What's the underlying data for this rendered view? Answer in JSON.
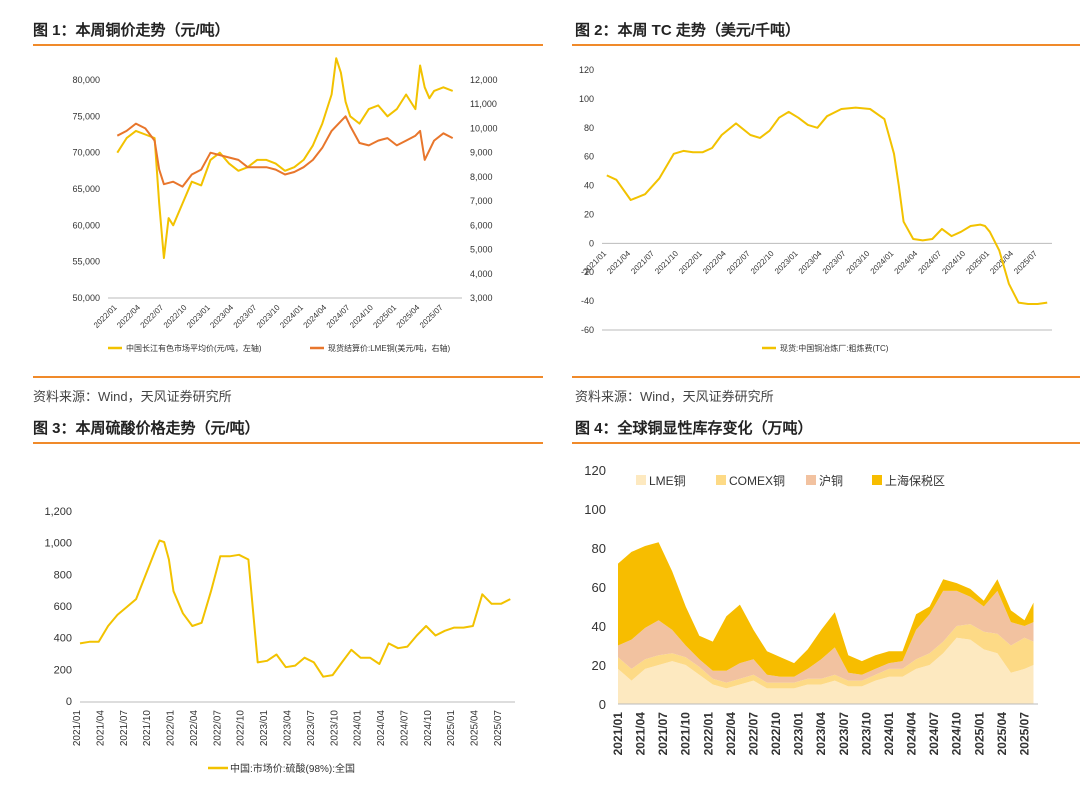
{
  "chart_data": [
    {
      "type": "line",
      "title": "图 1：本周铜价走势（元/吨）",
      "x_ticks": [
        "2022/01",
        "2022/04",
        "2022/07",
        "2022/10",
        "2023/01",
        "2023/04",
        "2023/07",
        "2023/10",
        "2024/01",
        "2024/04",
        "2024/07",
        "2024/10",
        "2025/01",
        "2025/04",
        "2025/07"
      ],
      "y_left": {
        "min": 50000,
        "max": 80000,
        "ticks": [
          "50,000",
          "55,000",
          "60,000",
          "65,000",
          "70,000",
          "75,000",
          "80,000"
        ]
      },
      "y_right": {
        "min": 3000,
        "max": 12000,
        "ticks": [
          "3,000",
          "4,000",
          "5,000",
          "6,000",
          "7,000",
          "8,000",
          "9,000",
          "10,000",
          "11,000",
          "12,000"
        ]
      },
      "series": [
        {
          "name": "中国长江有色市场平均价(元/吨，左轴)",
          "axis": "left",
          "color": "#f2c200",
          "x": [
            2022.0,
            2022.1,
            2022.2,
            2022.3,
            2022.4,
            2022.45,
            2022.5,
            2022.55,
            2022.6,
            2022.7,
            2022.8,
            2022.9,
            2023.0,
            2023.1,
            2023.2,
            2023.3,
            2023.4,
            2023.5,
            2023.6,
            2023.7,
            2023.8,
            2023.9,
            2024.0,
            2024.1,
            2024.2,
            2024.3,
            2024.35,
            2024.4,
            2024.45,
            2024.5,
            2024.6,
            2024.7,
            2024.8,
            2024.9,
            2025.0,
            2025.1,
            2025.2,
            2025.25,
            2025.3,
            2025.35,
            2025.4,
            2025.5,
            2025.6
          ],
          "values": [
            70000,
            72000,
            73000,
            72500,
            72000,
            63000,
            55500,
            61000,
            60000,
            63000,
            66000,
            65500,
            69000,
            70000,
            68500,
            67500,
            68000,
            69000,
            69000,
            68500,
            67500,
            68000,
            69000,
            71000,
            74000,
            78000,
            83000,
            81000,
            77000,
            75000,
            74000,
            76000,
            76500,
            75000,
            76000,
            78000,
            76000,
            82000,
            79000,
            77500,
            78500,
            79000,
            78500
          ]
        },
        {
          "name": "现货结算价:LME铜(美元/吨，右轴)",
          "axis": "right",
          "color": "#e8762c",
          "x": [
            2022.0,
            2022.1,
            2022.2,
            2022.3,
            2022.4,
            2022.45,
            2022.5,
            2022.6,
            2022.7,
            2022.8,
            2022.9,
            2023.0,
            2023.1,
            2023.2,
            2023.3,
            2023.4,
            2023.5,
            2023.6,
            2023.7,
            2023.8,
            2023.9,
            2024.0,
            2024.1,
            2024.2,
            2024.3,
            2024.4,
            2024.45,
            2024.5,
            2024.6,
            2024.7,
            2024.8,
            2024.9,
            2025.0,
            2025.1,
            2025.2,
            2025.25,
            2025.3,
            2025.4,
            2025.5,
            2025.6
          ],
          "values": [
            9700,
            9900,
            10200,
            10000,
            9500,
            8300,
            7700,
            7800,
            7600,
            8100,
            8300,
            9000,
            8900,
            8800,
            8700,
            8400,
            8400,
            8400,
            8300,
            8100,
            8200,
            8400,
            8700,
            9200,
            9900,
            10300,
            10500,
            10100,
            9400,
            9300,
            9500,
            9600,
            9300,
            9500,
            9700,
            9900,
            8700,
            9500,
            9800,
            9600
          ]
        }
      ]
    },
    {
      "type": "line",
      "title": "图 2：本周 TC 走势（美元/千吨）",
      "x_ticks": [
        "2021/01",
        "2021/04",
        "2021/07",
        "2021/10",
        "2022/01",
        "2022/04",
        "2022/07",
        "2022/10",
        "2023/01",
        "2023/04",
        "2023/07",
        "2023/10",
        "2024/01",
        "2024/04",
        "2024/07",
        "2024/10",
        "2025/01",
        "2025/04",
        "2025/07"
      ],
      "y": {
        "min": -60,
        "max": 120,
        "ticks": [
          "-60",
          "-40",
          "-20",
          "0",
          "20",
          "40",
          "60",
          "80",
          "100",
          "120"
        ]
      },
      "series": [
        {
          "name": "现货:中国铜冶炼厂:粗炼费(TC)",
          "color": "#f2c200",
          "x": [
            2021.0,
            2021.1,
            2021.25,
            2021.4,
            2021.55,
            2021.7,
            2021.8,
            2021.9,
            2022.0,
            2022.1,
            2022.2,
            2022.35,
            2022.5,
            2022.6,
            2022.7,
            2022.8,
            2022.9,
            2023.0,
            2023.1,
            2023.2,
            2023.3,
            2023.45,
            2023.6,
            2023.75,
            2023.9,
            2024.0,
            2024.05,
            2024.1,
            2024.2,
            2024.3,
            2024.4,
            2024.5,
            2024.6,
            2024.7,
            2024.8,
            2024.9,
            2024.95,
            2025.0,
            2025.1,
            2025.2,
            2025.3,
            2025.4,
            2025.5,
            2025.6
          ],
          "values": [
            47,
            44,
            30,
            34,
            45,
            62,
            64,
            63,
            63,
            66,
            75,
            83,
            75,
            73,
            78,
            87,
            91,
            87,
            82,
            80,
            88,
            93,
            94,
            93,
            86,
            62,
            40,
            15,
            3,
            2,
            3,
            10,
            5,
            8,
            12,
            13,
            12,
            8,
            -5,
            -28,
            -41,
            -42,
            -42,
            -41
          ]
        }
      ]
    },
    {
      "type": "line",
      "title": "图 3：本周硫酸价格走势（元/吨）",
      "x_ticks": [
        "2021/01",
        "2021/04",
        "2021/07",
        "2021/10",
        "2022/01",
        "2022/04",
        "2022/07",
        "2022/10",
        "2023/01",
        "2023/04",
        "2023/07",
        "2023/10",
        "2024/01",
        "2024/04",
        "2024/07",
        "2024/10",
        "2025/01",
        "2025/04",
        "2025/07"
      ],
      "y": {
        "min": 0,
        "max": 1200,
        "ticks": [
          "0",
          "200",
          "400",
          "600",
          "800",
          "1,000",
          "1,200"
        ]
      },
      "series": [
        {
          "name": "中国:市场价:硫酸(98%):全国",
          "color": "#f2c200",
          "x": [
            2021.0,
            2021.1,
            2021.2,
            2021.3,
            2021.4,
            2021.5,
            2021.6,
            2021.7,
            2021.8,
            2021.85,
            2021.9,
            2021.95,
            2022.0,
            2022.1,
            2022.2,
            2022.3,
            2022.4,
            2022.5,
            2022.6,
            2022.7,
            2022.8,
            2022.9,
            2023.0,
            2023.1,
            2023.2,
            2023.3,
            2023.4,
            2023.5,
            2023.6,
            2023.7,
            2023.8,
            2023.9,
            2024.0,
            2024.1,
            2024.2,
            2024.3,
            2024.4,
            2024.5,
            2024.6,
            2024.7,
            2024.8,
            2024.9,
            2025.0,
            2025.1,
            2025.2,
            2025.3,
            2025.4,
            2025.5,
            2025.6
          ],
          "values": [
            370,
            380,
            380,
            480,
            550,
            600,
            650,
            800,
            950,
            1020,
            1010,
            900,
            700,
            560,
            480,
            500,
            700,
            920,
            920,
            930,
            900,
            250,
            260,
            300,
            220,
            230,
            280,
            250,
            160,
            170,
            250,
            330,
            280,
            280,
            240,
            370,
            340,
            350,
            420,
            480,
            420,
            450,
            470,
            470,
            480,
            680,
            620,
            620,
            650
          ]
        }
      ]
    },
    {
      "type": "area",
      "title": "图 4：全球铜显性库存变化（万吨）",
      "x_ticks": [
        "2021/01",
        "2021/04",
        "2021/07",
        "2021/10",
        "2022/01",
        "2022/04",
        "2022/07",
        "2022/10",
        "2023/01",
        "2023/04",
        "2023/07",
        "2023/10",
        "2024/01",
        "2024/04",
        "2024/07",
        "2024/10",
        "2025/01",
        "2025/04",
        "2025/07"
      ],
      "y": {
        "min": 0,
        "max": 120,
        "ticks": [
          "0",
          "20",
          "40",
          "60",
          "80",
          "100",
          "120"
        ]
      },
      "x": [
        2021.0,
        2021.15,
        2021.3,
        2021.45,
        2021.6,
        2021.75,
        2021.9,
        2022.05,
        2022.2,
        2022.35,
        2022.5,
        2022.65,
        2022.8,
        2022.95,
        2023.1,
        2023.25,
        2023.4,
        2023.55,
        2023.7,
        2023.85,
        2024.0,
        2024.15,
        2024.3,
        2024.45,
        2024.6,
        2024.75,
        2024.9,
        2025.05,
        2025.2,
        2025.35,
        2025.5,
        2025.6
      ],
      "series": [
        {
          "name": "LME铜",
          "color": "#fde9c0",
          "values": [
            18,
            12,
            18,
            20,
            22,
            20,
            15,
            10,
            8,
            10,
            12,
            8,
            8,
            8,
            10,
            10,
            12,
            9,
            9,
            12,
            14,
            14,
            18,
            20,
            26,
            34,
            33,
            28,
            26,
            16,
            18,
            20
          ]
        },
        {
          "name": "COMEX铜",
          "color": "#fdda86",
          "values": [
            6,
            6,
            5,
            5,
            4,
            4,
            4,
            3,
            3,
            3,
            3,
            3,
            3,
            3,
            3,
            3,
            3,
            3,
            3,
            3,
            4,
            4,
            5,
            6,
            6,
            6,
            8,
            9,
            10,
            14,
            16,
            12
          ]
        },
        {
          "name": "沪铜",
          "color": "#f2c2a0",
          "values": [
            6,
            15,
            16,
            18,
            12,
            6,
            4,
            4,
            6,
            8,
            8,
            4,
            3,
            3,
            5,
            10,
            14,
            4,
            3,
            3,
            3,
            4,
            15,
            20,
            26,
            18,
            14,
            13,
            22,
            12,
            6,
            10
          ]
        },
        {
          "name": "上海保税区",
          "color": "#f7bd00",
          "values": [
            42,
            45,
            42,
            40,
            30,
            20,
            12,
            15,
            28,
            30,
            15,
            12,
            10,
            7,
            10,
            15,
            18,
            9,
            7,
            7,
            6,
            5,
            8,
            4,
            6,
            4,
            4,
            3,
            6,
            6,
            3,
            10
          ]
        }
      ]
    }
  ],
  "source_texts": [
    "资料来源：Wind，天风证券研究所",
    "资料来源：Wind，天风证券研究所"
  ]
}
